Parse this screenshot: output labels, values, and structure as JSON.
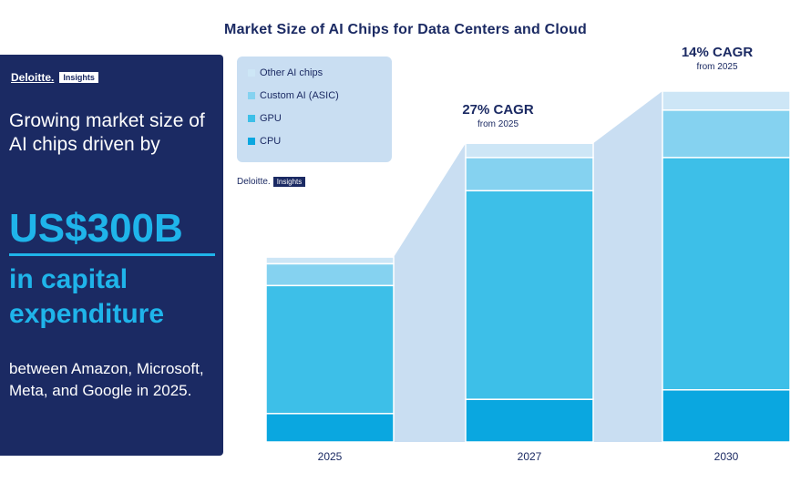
{
  "title": "Market Size of AI Chips for Data Centers and Cloud",
  "panel": {
    "brand": "Deloitte.",
    "brand_tag": "Insights",
    "lead": "Growing market size of AI chips driven by",
    "big": "US$300B",
    "sub": "in capital expenditure",
    "note": "between Amazon, Microsoft, Meta, and Google in 2025."
  },
  "source": {
    "label": "Deloitte.",
    "tag": "Insights"
  },
  "colors": {
    "other": "#cde6f6",
    "custom": "#85d2f0",
    "gpu": "#3dbfe8",
    "cpu": "#0aa7e0",
    "connector": "#c9def2",
    "panel": "#1b2a63"
  },
  "chart_data": {
    "type": "bar",
    "stacked": true,
    "categories": [
      "2025",
      "2027",
      "2030"
    ],
    "series": [
      {
        "name": "CPU",
        "values": [
          30,
          45,
          55
        ]
      },
      {
        "name": "GPU",
        "values": [
          135,
          220,
          245
        ]
      },
      {
        "name": "Custom AI (ASIC)",
        "values": [
          23,
          35,
          50
        ]
      },
      {
        "name": "Other AI chips",
        "values": [
          7,
          15,
          20
        ]
      }
    ],
    "legend_order": [
      "Other AI chips",
      "Custom AI (ASIC)",
      "GPU",
      "CPU"
    ],
    "annotations": [
      {
        "between": [
          "2025",
          "2027"
        ],
        "text": "27% CAGR",
        "subtext": "from 2025"
      },
      {
        "between": [
          "2027",
          "2030"
        ],
        "text": "14% CAGR",
        "subtext": "from 2025"
      }
    ],
    "ylim": [
      0,
      370
    ],
    "grid": false,
    "legend_position": "top-left"
  }
}
